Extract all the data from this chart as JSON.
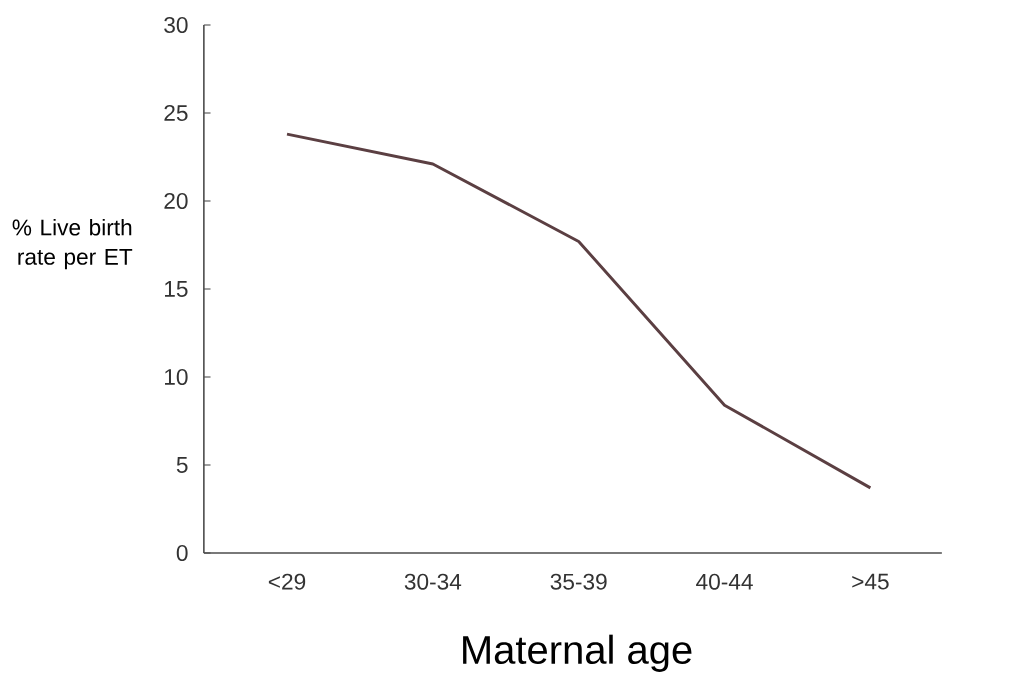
{
  "chart_data": {
    "type": "line",
    "xlabel": "Maternal age",
    "ylabel": "% Live birth rate per ET",
    "categories": [
      "<29",
      "30-34",
      "35-39",
      "40-44",
      ">45"
    ],
    "values": [
      23.8,
      22.1,
      17.7,
      8.4,
      3.7
    ],
    "color": "#5b3f42",
    "marker": "none",
    "ylim": [
      0,
      30
    ],
    "yticks": [
      0,
      5,
      10,
      15,
      20,
      25,
      30
    ]
  }
}
